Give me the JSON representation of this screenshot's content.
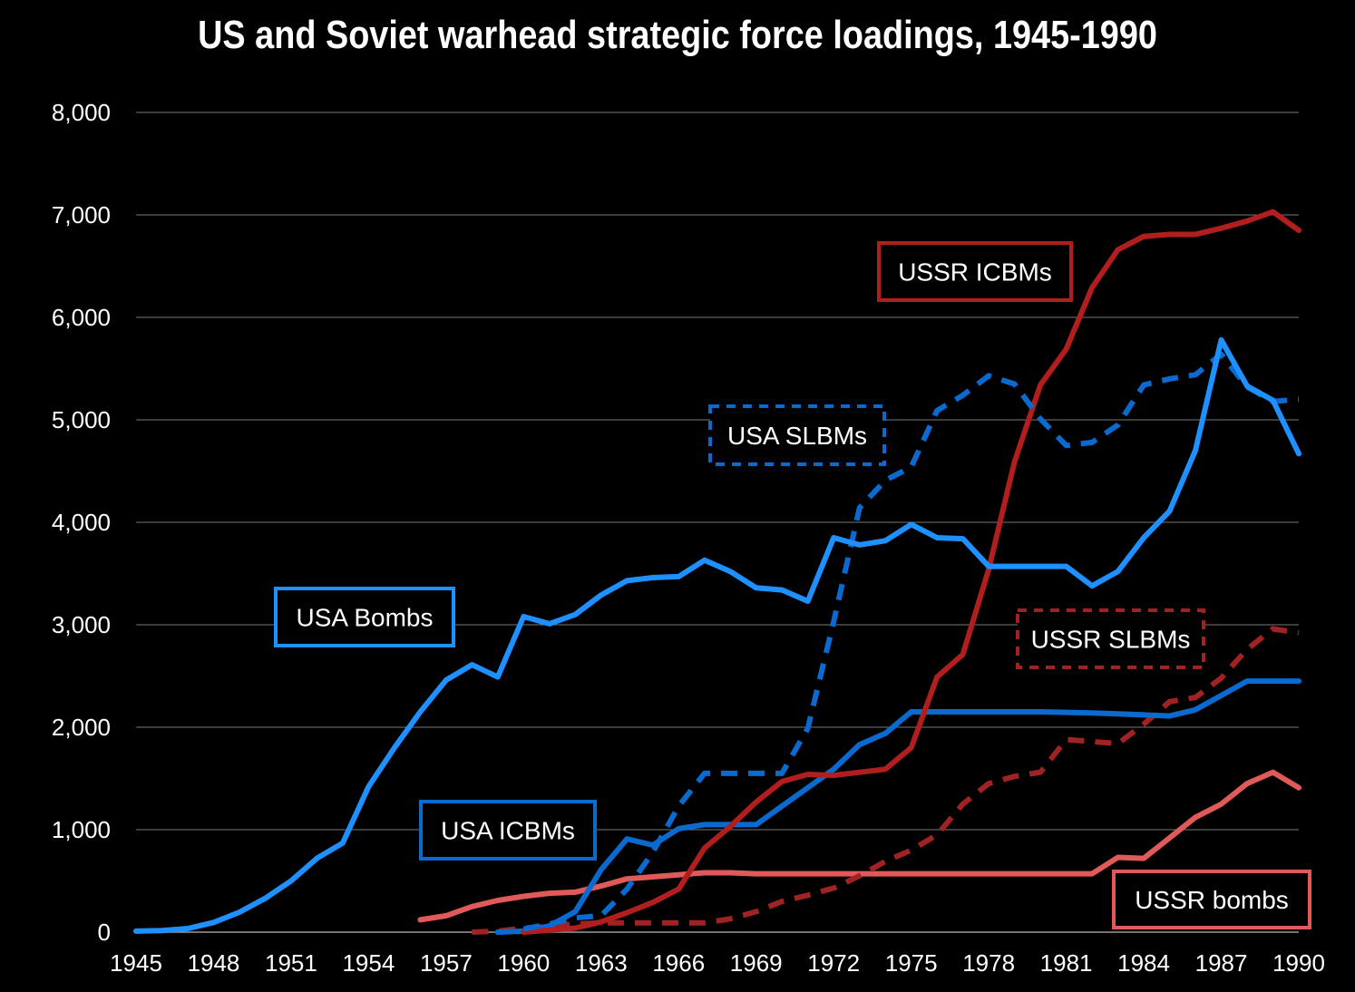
{
  "chart_data": {
    "type": "line",
    "title": "US and Soviet warhead strategic force loadings, 1945-1990",
    "xlabel": "",
    "ylabel": "",
    "ylim": [
      0,
      8000
    ],
    "y_ticks": [
      "0",
      "1,000",
      "2,000",
      "3,000",
      "4,000",
      "5,000",
      "6,000",
      "7,000",
      "8,000"
    ],
    "x_ticks": [
      "1945",
      "1948",
      "1951",
      "1954",
      "1957",
      "1960",
      "1963",
      "1966",
      "1969",
      "1972",
      "1975",
      "1978",
      "1981",
      "1984",
      "1987",
      "1990"
    ],
    "grid": true,
    "background": "#000000",
    "series": [
      {
        "name": "USA Bombs",
        "color": "#1E90FF",
        "style": "solid",
        "x": [
          1945,
          1946,
          1947,
          1948,
          1949,
          1950,
          1951,
          1952,
          1953,
          1954,
          1955,
          1956,
          1957,
          1958,
          1959,
          1960,
          1961,
          1962,
          1963,
          1964,
          1965,
          1966,
          1967,
          1968,
          1969,
          1970,
          1971,
          1972,
          1973,
          1974,
          1975,
          1976,
          1977,
          1978,
          1979,
          1980,
          1981,
          1982,
          1983,
          1984,
          1985,
          1986,
          1987,
          1988,
          1989,
          1990
        ],
        "values": [
          10,
          15,
          35,
          95,
          195,
          330,
          500,
          720,
          870,
          1420,
          1800,
          2150,
          2460,
          2610,
          2490,
          3080,
          3010,
          3100,
          3290,
          3430,
          3460,
          3470,
          3630,
          3520,
          3360,
          3340,
          3230,
          3850,
          3780,
          3820,
          3980,
          3850,
          3840,
          3570,
          3570,
          3570,
          3570,
          3380,
          3520,
          3850,
          4110,
          4700,
          5780,
          5330,
          5190,
          4670
        ]
      },
      {
        "name": "USA ICBMs",
        "color": "#0A6AD0",
        "style": "solid",
        "x": [
          1959,
          1960,
          1961,
          1962,
          1963,
          1964,
          1965,
          1966,
          1967,
          1968,
          1969,
          1970,
          1971,
          1972,
          1973,
          1974,
          1975,
          1976,
          1977,
          1978,
          1979,
          1980,
          1981,
          1982,
          1983,
          1984,
          1985,
          1986,
          1987,
          1988,
          1989,
          1990
        ],
        "values": [
          0,
          10,
          60,
          200,
          610,
          910,
          850,
          1010,
          1050,
          1050,
          1050,
          1230,
          1410,
          1590,
          1830,
          1940,
          2150,
          2150,
          2150,
          2150,
          2150,
          2150,
          2145,
          2140,
          2130,
          2120,
          2110,
          2170,
          2310,
          2450,
          2450,
          2450
        ]
      },
      {
        "name": "USA SLBMs",
        "color": "#0A6AD0",
        "style": "dashed",
        "x": [
          1960,
          1961,
          1962,
          1963,
          1964,
          1965,
          1966,
          1967,
          1968,
          1969,
          1970,
          1971,
          1972,
          1973,
          1974,
          1975,
          1976,
          1977,
          1978,
          1979,
          1980,
          1981,
          1982,
          1983,
          1984,
          1985,
          1986,
          1987,
          1988,
          1989,
          1990
        ],
        "values": [
          30,
          80,
          140,
          160,
          420,
          780,
          1230,
          1550,
          1550,
          1550,
          1550,
          1990,
          3030,
          4140,
          4410,
          4540,
          5090,
          5240,
          5430,
          5350,
          5010,
          4750,
          4780,
          4950,
          5340,
          5400,
          5440,
          5640,
          5320,
          5180,
          5200
        ]
      },
      {
        "name": "USSR ICBMs",
        "color": "#B01E1E",
        "style": "solid",
        "x": [
          1960,
          1961,
          1962,
          1963,
          1964,
          1965,
          1966,
          1967,
          1968,
          1969,
          1970,
          1971,
          1972,
          1973,
          1974,
          1975,
          1976,
          1977,
          1978,
          1979,
          1980,
          1981,
          1982,
          1983,
          1984,
          1985,
          1986,
          1987,
          1988,
          1989,
          1990
        ],
        "values": [
          0,
          20,
          40,
          100,
          190,
          290,
          420,
          820,
          1030,
          1270,
          1470,
          1540,
          1530,
          1560,
          1590,
          1800,
          2490,
          2710,
          3540,
          4590,
          5340,
          5690,
          6290,
          6660,
          6790,
          6810,
          6810,
          6870,
          6940,
          7030,
          6850
        ]
      },
      {
        "name": "USSR SLBMs",
        "color": "#A02222",
        "style": "dashed",
        "x": [
          1958,
          1959,
          1960,
          1961,
          1962,
          1963,
          1964,
          1965,
          1966,
          1967,
          1968,
          1969,
          1970,
          1971,
          1972,
          1973,
          1974,
          1975,
          1976,
          1977,
          1978,
          1979,
          1980,
          1981,
          1982,
          1983,
          1984,
          1985,
          1986,
          1987,
          1988,
          1989,
          1990
        ],
        "values": [
          0,
          10,
          40,
          55,
          80,
          90,
          90,
          90,
          90,
          90,
          130,
          200,
          300,
          360,
          430,
          550,
          690,
          800,
          950,
          1250,
          1450,
          1520,
          1560,
          1880,
          1860,
          1840,
          2030,
          2250,
          2290,
          2480,
          2760,
          2960,
          2920
        ]
      },
      {
        "name": "USSR bombs",
        "color": "#E05A5A",
        "style": "solid",
        "x": [
          1956,
          1957,
          1958,
          1959,
          1960,
          1961,
          1962,
          1963,
          1964,
          1965,
          1966,
          1967,
          1968,
          1969,
          1970,
          1971,
          1972,
          1973,
          1974,
          1975,
          1976,
          1977,
          1978,
          1979,
          1980,
          1981,
          1982,
          1983,
          1984,
          1985,
          1986,
          1987,
          1988,
          1989,
          1990
        ],
        "values": [
          120,
          160,
          250,
          310,
          350,
          380,
          390,
          450,
          520,
          540,
          560,
          580,
          580,
          570,
          570,
          570,
          570,
          570,
          570,
          570,
          570,
          570,
          570,
          570,
          570,
          570,
          570,
          730,
          720,
          920,
          1120,
          1250,
          1450,
          1560,
          1410
        ]
      }
    ]
  }
}
